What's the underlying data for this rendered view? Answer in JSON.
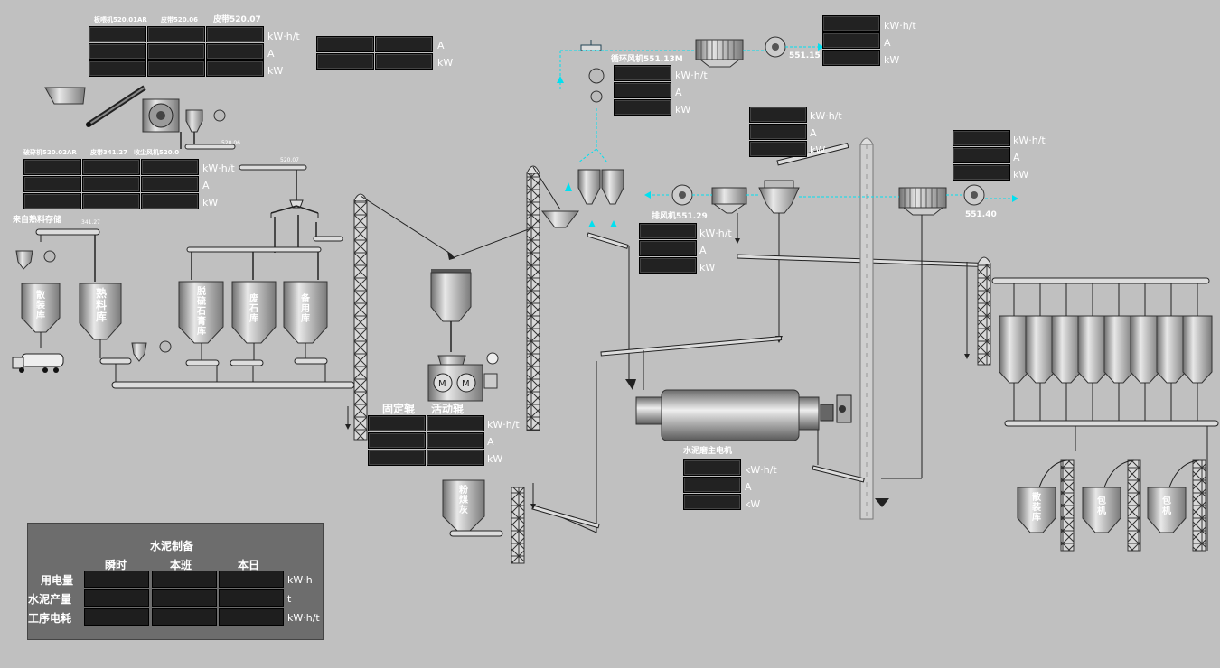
{
  "labels": {
    "crusher_top": [
      "板喂机520.01AR",
      "皮带520.06",
      "皮带520.07"
    ],
    "crusher_bottom": [
      "破碎机520.02AR",
      "皮带341.27",
      "收尘风机520.0"
    ],
    "clinker_source": "来自熟料存储",
    "belt_341": "341.27",
    "belt_520_06": "520.06",
    "belt_520_07": "520.07",
    "roller_fixed": "固定辊",
    "roller_moving": "活动辊",
    "circ_fan": "循环风机551.13M",
    "exhaust_fan": "排风机551.29",
    "fan_551_15": "551.15",
    "fan_551_40": "551.40",
    "mill_motor": "水泥磨主电机"
  },
  "silos": {
    "bulk_left": "散装库",
    "clinker": "熟料库",
    "gypsum": "脱硫石膏库",
    "waste_stone": "废石库",
    "spare": "备用库",
    "fly_ash": "粉煤灰",
    "bulk_right": "散装库",
    "pack1": "包机",
    "pack2": "包机"
  },
  "units": {
    "kwh_t": "kW·h/t",
    "amp": "A",
    "kw": "kW",
    "kwh": "kW·h",
    "ton": "t"
  },
  "summary": {
    "title": "水泥制备",
    "col_instant": "瞬时",
    "col_shift": "本班",
    "col_day": "本日",
    "row_power": "用电量",
    "row_output": "水泥产量",
    "row_consumption": "工序电耗"
  },
  "colors": {
    "background": "#c0c0c0",
    "value_box": "#222222",
    "flow_arrow": "#00e0f0",
    "panel": "#6d6d6d"
  }
}
